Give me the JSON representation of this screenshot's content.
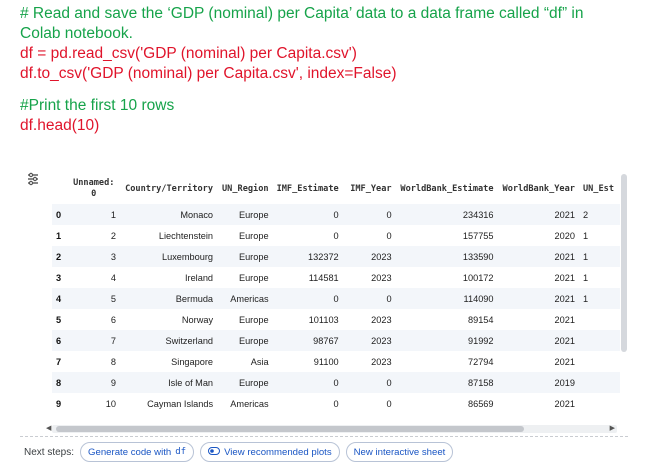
{
  "code": {
    "comment1_line1": "# Read and save the ‘GDP (nominal) per Capita’ data to a data frame called “df” in",
    "comment1_line2": "Colab notebook.",
    "code1": "df = pd.read_csv('GDP (nominal) per Capita.csv')",
    "code2": "df.to_csv('GDP (nominal) per Capita.csv', index=False)",
    "comment2": "#Print the first 10 rows",
    "code3": "df.head(10)"
  },
  "output_icon": "output-options-icon",
  "table": {
    "headers": {
      "unnamed_line1": "Unnamed:",
      "unnamed_line2": "0",
      "country": "Country/Territory",
      "region": "UN_Region",
      "imf_estimate": "IMF_Estimate",
      "imf_year": "IMF_Year",
      "wb_estimate": "WorldBank_Estimate",
      "wb_year": "WorldBank_Year",
      "un_est": "UN_Est"
    },
    "rows": [
      {
        "idx": "0",
        "unnamed": "1",
        "country": "Monaco",
        "region": "Europe",
        "imf_estimate": "0",
        "imf_year": "0",
        "wb_estimate": "234316",
        "wb_year": "2021",
        "un_est": "2"
      },
      {
        "idx": "1",
        "unnamed": "2",
        "country": "Liechtenstein",
        "region": "Europe",
        "imf_estimate": "0",
        "imf_year": "0",
        "wb_estimate": "157755",
        "wb_year": "2020",
        "un_est": "1"
      },
      {
        "idx": "2",
        "unnamed": "3",
        "country": "Luxembourg",
        "region": "Europe",
        "imf_estimate": "132372",
        "imf_year": "2023",
        "wb_estimate": "133590",
        "wb_year": "2021",
        "un_est": "1"
      },
      {
        "idx": "3",
        "unnamed": "4",
        "country": "Ireland",
        "region": "Europe",
        "imf_estimate": "114581",
        "imf_year": "2023",
        "wb_estimate": "100172",
        "wb_year": "2021",
        "un_est": "1"
      },
      {
        "idx": "4",
        "unnamed": "5",
        "country": "Bermuda",
        "region": "Americas",
        "imf_estimate": "0",
        "imf_year": "0",
        "wb_estimate": "114090",
        "wb_year": "2021",
        "un_est": "1"
      },
      {
        "idx": "5",
        "unnamed": "6",
        "country": "Norway",
        "region": "Europe",
        "imf_estimate": "101103",
        "imf_year": "2023",
        "wb_estimate": "89154",
        "wb_year": "2021",
        "un_est": ""
      },
      {
        "idx": "6",
        "unnamed": "7",
        "country": "Switzerland",
        "region": "Europe",
        "imf_estimate": "98767",
        "imf_year": "2023",
        "wb_estimate": "91992",
        "wb_year": "2021",
        "un_est": ""
      },
      {
        "idx": "7",
        "unnamed": "8",
        "country": "Singapore",
        "region": "Asia",
        "imf_estimate": "91100",
        "imf_year": "2023",
        "wb_estimate": "72794",
        "wb_year": "2021",
        "un_est": ""
      },
      {
        "idx": "8",
        "unnamed": "9",
        "country": "Isle of Man",
        "region": "Europe",
        "imf_estimate": "0",
        "imf_year": "0",
        "wb_estimate": "87158",
        "wb_year": "2019",
        "un_est": ""
      },
      {
        "idx": "9",
        "unnamed": "10",
        "country": "Cayman Islands",
        "region": "Americas",
        "imf_estimate": "0",
        "imf_year": "0",
        "wb_estimate": "86569",
        "wb_year": "2021",
        "un_est": ""
      }
    ]
  },
  "next_steps": {
    "label": "Next steps:",
    "chip1": "Generate code with",
    "chip1_var": "df",
    "chip2": "View recommended plots",
    "chip3": "New interactive sheet"
  },
  "colors": {
    "comment": "#16a34a",
    "code": "#e0142b",
    "chip_text": "#1a56c4"
  }
}
